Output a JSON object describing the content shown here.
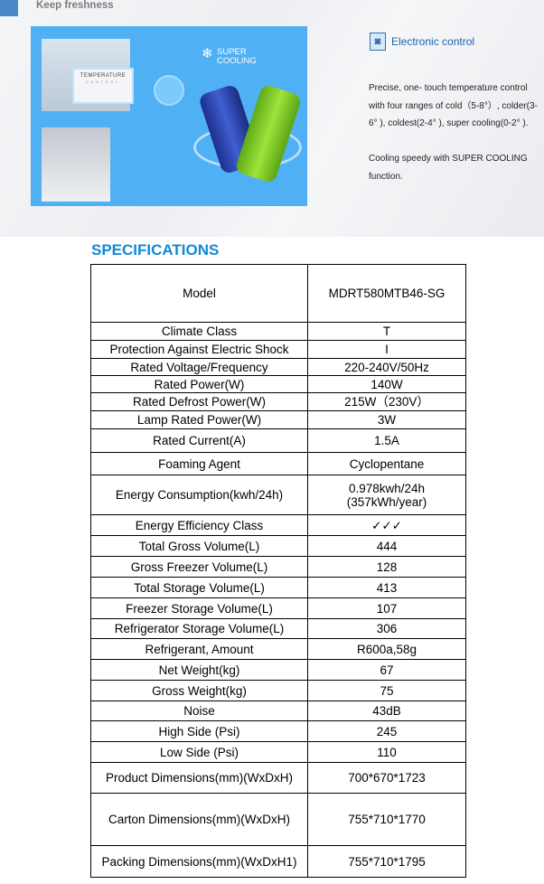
{
  "banner": {
    "section_title": "Keep freshness",
    "image": {
      "panel_title": "TEMPERATURE",
      "panel_subtitle": "CONTROL",
      "badge": "SUPER COOLING",
      "badge_line1": "SUPER",
      "badge_line2": "COOLING"
    },
    "feature_icon": "electronic-control-icon",
    "feature_title": "Electronic control",
    "paragraph1": "Precise, one- touch temperature control with four ranges of cold（5-8°）, colder(3-6° ), coldest(2-4° ), super cooling(0-2° ).",
    "paragraph2": "Cooling speedy with SUPER COOLING function."
  },
  "specifications": {
    "title": "SPECIFICATIONS",
    "rows": [
      {
        "label": "Model",
        "value": "MDRT580MTB46-SG"
      },
      {
        "label": "Climate Class",
        "value": "T"
      },
      {
        "label": "Protection Against Electric Shock",
        "value": "I"
      },
      {
        "label": "Rated Voltage/Frequency",
        "value": "220-240V/50Hz"
      },
      {
        "label": "Rated Power(W)",
        "value": "140W"
      },
      {
        "label": "Rated Defrost Power(W)",
        "value": "215W（230V）"
      },
      {
        "label": "Lamp Rated Power(W)",
        "value": "3W"
      },
      {
        "label": "Rated Current(A)",
        "value": "1.5A"
      },
      {
        "label": "Foaming Agent",
        "value": "Cyclopentane"
      },
      {
        "label": "Energy Consumption(kwh/24h)",
        "value": "0.978kwh/24h (357kWh/year)"
      },
      {
        "label": "Energy Efficiency Class",
        "value": "✓✓✓"
      },
      {
        "label": "Total Gross Volume(L)",
        "value": "444"
      },
      {
        "label": "Gross Freezer Volume(L)",
        "value": "128"
      },
      {
        "label": "Total Storage Volume(L)",
        "value": "413"
      },
      {
        "label": "Freezer Storage Volume(L)",
        "value": "107"
      },
      {
        "label": "Refrigerator Storage Volume(L)",
        "value": "306"
      },
      {
        "label": "Refrigerant, Amount",
        "value": "R600a,58g"
      },
      {
        "label": "Net Weight(kg)",
        "value": "67"
      },
      {
        "label": "Gross Weight(kg)",
        "value": "75"
      },
      {
        "label": "Noise",
        "value": "43dB"
      },
      {
        "label": "High Side (Psi)",
        "value": "245"
      },
      {
        "label": "Low Side (Psi)",
        "value": "110"
      },
      {
        "label": "Product Dimensions(mm)(WxDxH)",
        "value": "700*670*1723"
      },
      {
        "label": "Carton Dimensions(mm)(WxDxH)",
        "value": "755*710*1770"
      },
      {
        "label": "Packing Dimensions(mm)(WxDxH1)",
        "value": "755*710*1795"
      }
    ]
  }
}
